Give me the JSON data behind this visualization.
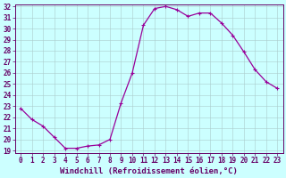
{
  "x": [
    0,
    1,
    2,
    3,
    4,
    5,
    6,
    7,
    8,
    9,
    10,
    11,
    12,
    13,
    14,
    15,
    16,
    17,
    18,
    19,
    20,
    21,
    22,
    23
  ],
  "y": [
    22.8,
    21.8,
    21.2,
    20.2,
    19.2,
    19.2,
    19.4,
    19.5,
    20.0,
    23.3,
    26.0,
    30.3,
    31.8,
    32.0,
    31.7,
    31.1,
    31.4,
    31.4,
    30.5,
    29.4,
    27.9,
    26.3,
    25.2,
    24.6
  ],
  "line_color": "#990099",
  "marker": "+",
  "marker_size": 3,
  "marker_lw": 0.8,
  "line_width": 0.9,
  "bg_color": "#ccffff",
  "grid_color": "#aacccc",
  "xlabel": "Windchill (Refroidissement éolien,°C)",
  "ylim": [
    19,
    32
  ],
  "xlim": [
    -0.5,
    23.5
  ],
  "yticks": [
    19,
    20,
    21,
    22,
    23,
    24,
    25,
    26,
    27,
    28,
    29,
    30,
    31,
    32
  ],
  "xticks": [
    0,
    1,
    2,
    3,
    4,
    5,
    6,
    7,
    8,
    9,
    10,
    11,
    12,
    13,
    14,
    15,
    16,
    17,
    18,
    19,
    20,
    21,
    22,
    23
  ],
  "tick_fontsize": 5.5,
  "xlabel_fontsize": 6.5,
  "spine_color": "#660066",
  "label_color": "#660066"
}
